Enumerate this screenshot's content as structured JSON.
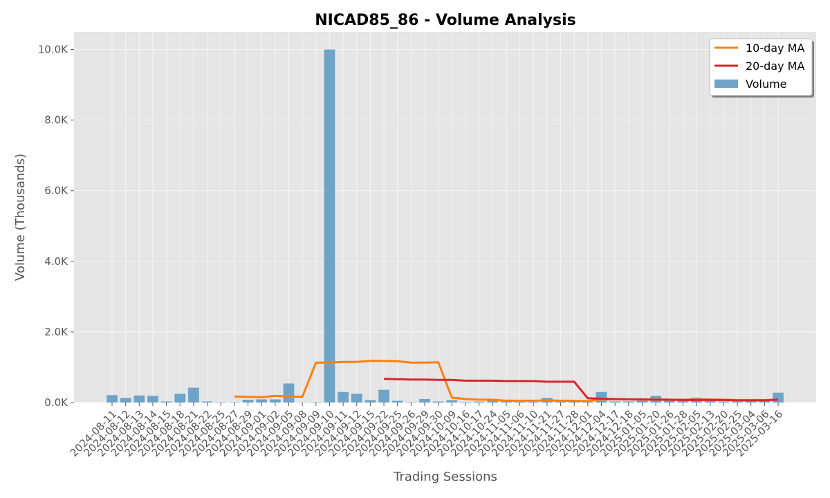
{
  "chart_data": {
    "type": "bar",
    "title": "NICAD85_86 - Volume Analysis",
    "xlabel": "Trading Sessions",
    "ylabel": "Volume (Thousands)",
    "ylim": [
      0,
      10500
    ],
    "yticks": [
      0,
      2000,
      4000,
      6000,
      8000,
      10000
    ],
    "ytick_labels": [
      "0.0K",
      "2.0K",
      "4.0K",
      "6.0K",
      "8.0K",
      "10.0K"
    ],
    "grid": true,
    "legend_position": "top-right",
    "categories": [
      "2024-08-11",
      "2024-08-12",
      "2024-08-13",
      "2024-08-14",
      "2024-08-15",
      "2024-08-18",
      "2024-08-21",
      "2024-08-22",
      "2024-08-25",
      "2024-08-27",
      "2024-08-29",
      "2024-09-01",
      "2024-09-02",
      "2024-09-05",
      "2024-09-08",
      "2024-09-09",
      "2024-09-10",
      "2024-09-11",
      "2024-09-12",
      "2024-09-15",
      "2024-09-22",
      "2024-09-25",
      "2024-09-26",
      "2024-09-29",
      "2024-09-30",
      "2024-10-09",
      "2024-10-16",
      "2024-10-17",
      "2024-10-24",
      "2024-11-05",
      "2024-11-06",
      "2024-11-10",
      "2024-11-21",
      "2024-11-27",
      "2024-11-28",
      "2024-12-01",
      "2024-12-04",
      "2024-12-17",
      "2024-12-18",
      "2025-01-05",
      "2025-01-20",
      "2025-01-26",
      "2025-01-28",
      "2025-02-05",
      "2025-02-13",
      "2025-02-20",
      "2025-02-25",
      "2025-03-04",
      "2025-03-06",
      "2025-03-16"
    ],
    "series": [
      {
        "name": "Volume",
        "type": "bar",
        "color": "#6fa3c8",
        "values": [
          210,
          130,
          200,
          190,
          30,
          250,
          420,
          30,
          10,
          10,
          80,
          90,
          90,
          540,
          5,
          10,
          10000,
          300,
          250,
          70,
          360,
          50,
          10,
          100,
          30,
          70,
          15,
          25,
          70,
          80,
          20,
          20,
          130,
          70,
          30,
          20,
          300,
          30,
          30,
          50,
          190,
          60,
          50,
          140,
          50,
          30,
          30,
          40,
          40,
          280
        ]
      },
      {
        "name": "10-day MA",
        "type": "line",
        "color": "#ff7f0e",
        "values": [
          null,
          null,
          null,
          null,
          null,
          null,
          null,
          null,
          null,
          170,
          160,
          150,
          190,
          170,
          160,
          1130,
          1130,
          1150,
          1150,
          1180,
          1180,
          1170,
          1130,
          1130,
          1140,
          140,
          100,
          80,
          80,
          50,
          50,
          50,
          60,
          50,
          50,
          40,
          90,
          90,
          90,
          80,
          90,
          80,
          80,
          90,
          90,
          80,
          70,
          70,
          70,
          80
        ]
      },
      {
        "name": "20-day MA",
        "type": "line",
        "color": "#d62728",
        "values": [
          null,
          null,
          null,
          null,
          null,
          null,
          null,
          null,
          null,
          null,
          null,
          null,
          null,
          null,
          null,
          null,
          null,
          null,
          null,
          null,
          670,
          660,
          650,
          650,
          640,
          640,
          620,
          620,
          620,
          610,
          610,
          610,
          590,
          590,
          590,
          120,
          110,
          100,
          90,
          90,
          80,
          80,
          70,
          70,
          70,
          70,
          60,
          60,
          60,
          80
        ]
      }
    ]
  }
}
